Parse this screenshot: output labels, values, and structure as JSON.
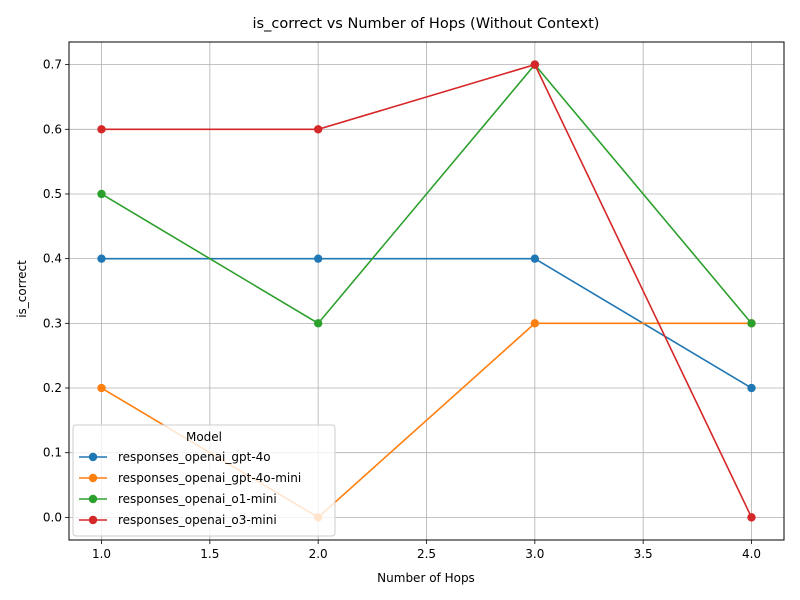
{
  "chart_data": {
    "type": "line",
    "title": "is_correct vs Number of Hops (Without Context)",
    "xlabel": "Number of Hops",
    "ylabel": "is_correct",
    "x": [
      1.0,
      2.0,
      3.0,
      4.0
    ],
    "xlim": [
      0.85,
      4.15
    ],
    "ylim": [
      -0.035,
      0.735
    ],
    "xticks": [
      "1.0",
      "1.5",
      "2.0",
      "2.5",
      "3.0",
      "3.5",
      "4.0"
    ],
    "xtick_values": [
      1.0,
      1.5,
      2.0,
      2.5,
      3.0,
      3.5,
      4.0
    ],
    "yticks": [
      "0.0",
      "0.1",
      "0.2",
      "0.3",
      "0.4",
      "0.5",
      "0.6",
      "0.7"
    ],
    "ytick_values": [
      0.0,
      0.1,
      0.2,
      0.3,
      0.4,
      0.5,
      0.6,
      0.7
    ],
    "grid": true,
    "legend": {
      "title": "Model",
      "placement": "lower-left"
    },
    "series": [
      {
        "name": "responses_openai_gpt-4o",
        "color": "#1f77b4",
        "values": [
          0.4,
          0.4,
          0.4,
          0.2
        ]
      },
      {
        "name": "responses_openai_gpt-4o-mini",
        "color": "#ff7f0e",
        "values": [
          0.2,
          0.0,
          0.3,
          0.3
        ]
      },
      {
        "name": "responses_openai_o1-mini",
        "color": "#2ca02c",
        "values": [
          0.5,
          0.3,
          0.7,
          0.3
        ]
      },
      {
        "name": "responses_openai_o3-mini",
        "color": "#d62728",
        "values": [
          0.6,
          0.6,
          0.7,
          0.0
        ]
      }
    ]
  }
}
